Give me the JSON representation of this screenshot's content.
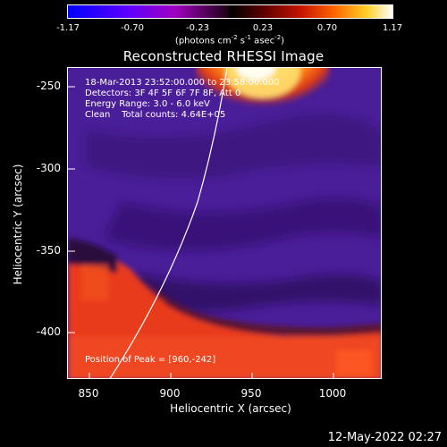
{
  "colorbar": {
    "ticks": [
      "-1.17",
      "-0.70",
      "-0.23",
      "0.23",
      "0.70",
      "1.17"
    ],
    "units": {
      "prefix": "(photons cm",
      "sup1": "-2",
      "mid1": " s",
      "sup2": "-1",
      "mid2": " asec",
      "sup3": "-2",
      "suffix": ")"
    }
  },
  "title": "Reconstructed RHESSI Image",
  "annotations": {
    "time": "18-Mar-2013 23:52:00.000 to 23:58:00.000",
    "detectors": "Detectors: 3F 4F 5F 6F 7F 8F, Att 0",
    "energy": "Energy Range: 3.0 - 6.0 keV",
    "clean": "Clean    Total counts: 4.64E+05",
    "peak": "Position of Peak = [960,-242]"
  },
  "axes": {
    "xlabel": "Heliocentric X (arcsec)",
    "ylabel": "Heliocentric Y (arcsec)",
    "xticks": [
      "850",
      "900",
      "950",
      "1000"
    ],
    "yticks": [
      "-250",
      "-300",
      "-350",
      "-400"
    ]
  },
  "timestamp": "12-May-2022 02:27",
  "colors": {
    "background": "#000000",
    "purple": "#4a1e98",
    "red": "#e83a1a",
    "hot": "#ffd040"
  }
}
